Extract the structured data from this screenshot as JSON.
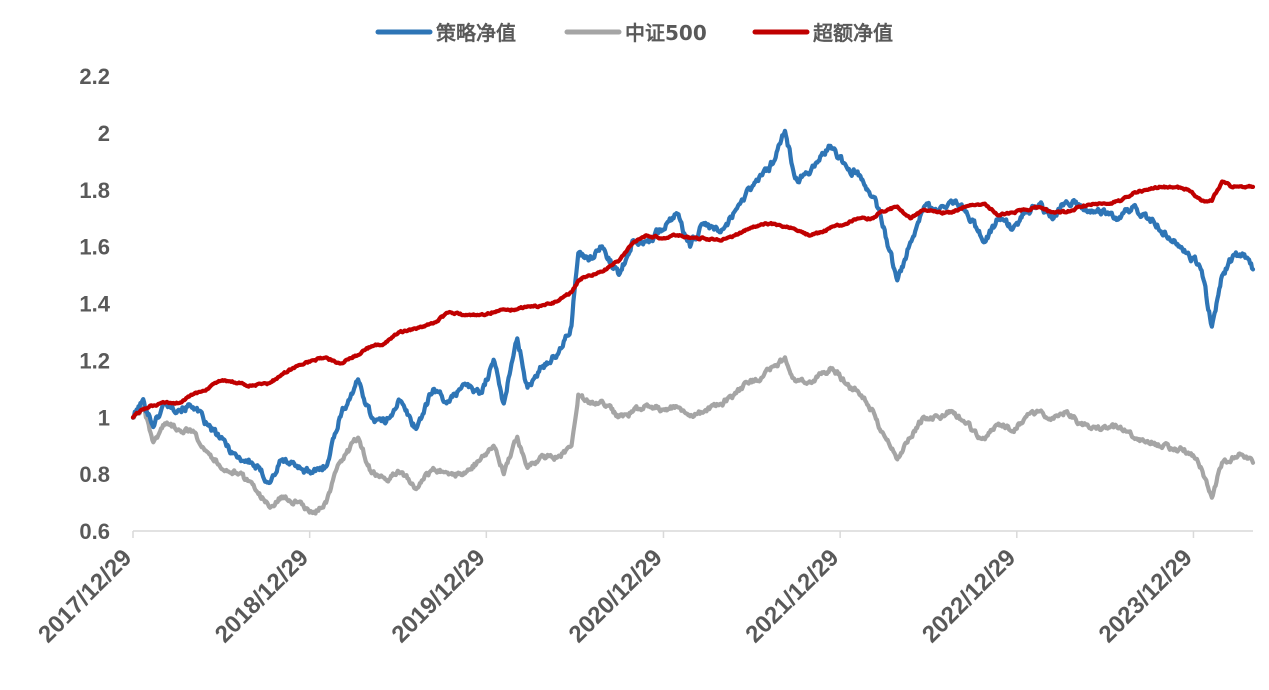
{
  "chart_data": {
    "type": "line",
    "title": "",
    "xlabel": "",
    "ylabel": "",
    "x_ticks": [
      "2017/12/29",
      "2018/12/29",
      "2019/12/29",
      "2020/12/29",
      "2021/12/29",
      "2022/12/29",
      "2023/12/29"
    ],
    "y_ticks": [
      "0.6",
      "0.8",
      "1",
      "1.2",
      "1.4",
      "1.6",
      "1.8",
      "2",
      "2.2"
    ],
    "ylim": [
      0.6,
      2.2
    ],
    "xlim": [
      "2017-12-29",
      "2024-04-30"
    ],
    "grid": false,
    "legend": "top-center",
    "series": [
      {
        "name": "策略净值",
        "color": "#2E75B6",
        "points": [
          [
            "2017-12-29",
            1.0
          ],
          [
            "2018-01-19",
            1.06
          ],
          [
            "2018-02-09",
            0.97
          ],
          [
            "2018-03-05",
            1.05
          ],
          [
            "2018-04-02",
            1.03
          ],
          [
            "2018-05-02",
            1.04
          ],
          [
            "2018-06-01",
            0.97
          ],
          [
            "2018-07-02",
            0.92
          ],
          [
            "2018-08-01",
            0.86
          ],
          [
            "2018-08-31",
            0.84
          ],
          [
            "2018-10-08",
            0.77
          ],
          [
            "2018-11-01",
            0.85
          ],
          [
            "2018-12-03",
            0.83
          ],
          [
            "2019-01-04",
            0.8
          ],
          [
            "2019-02-01",
            0.83
          ],
          [
            "2019-03-01",
            1.0
          ],
          [
            "2019-04-08",
            1.13
          ],
          [
            "2019-05-06",
            1.0
          ],
          [
            "2019-06-03",
            0.98
          ],
          [
            "2019-07-01",
            1.06
          ],
          [
            "2019-08-06",
            0.96
          ],
          [
            "2019-09-10",
            1.1
          ],
          [
            "2019-10-14",
            1.05
          ],
          [
            "2019-11-11",
            1.12
          ],
          [
            "2019-12-16",
            1.08
          ],
          [
            "2020-01-13",
            1.2
          ],
          [
            "2020-02-03",
            1.05
          ],
          [
            "2020-03-02",
            1.28
          ],
          [
            "2020-03-23",
            1.1
          ],
          [
            "2020-04-20",
            1.18
          ],
          [
            "2020-05-25",
            1.22
          ],
          [
            "2020-06-22",
            1.32
          ],
          [
            "2020-07-06",
            1.58
          ],
          [
            "2020-07-27",
            1.55
          ],
          [
            "2020-08-24",
            1.6
          ],
          [
            "2020-09-28",
            1.5
          ],
          [
            "2020-10-26",
            1.62
          ],
          [
            "2020-11-23",
            1.62
          ],
          [
            "2020-12-28",
            1.66
          ],
          [
            "2021-01-25",
            1.72
          ],
          [
            "2021-02-22",
            1.6
          ],
          [
            "2021-03-22",
            1.68
          ],
          [
            "2021-04-26",
            1.65
          ],
          [
            "2021-05-24",
            1.72
          ],
          [
            "2021-06-21",
            1.8
          ],
          [
            "2021-07-19",
            1.85
          ],
          [
            "2021-08-16",
            1.9
          ],
          [
            "2021-09-06",
            2.01
          ],
          [
            "2021-09-27",
            1.84
          ],
          [
            "2021-10-25",
            1.85
          ],
          [
            "2021-11-22",
            1.93
          ],
          [
            "2021-12-13",
            1.95
          ],
          [
            "2022-01-10",
            1.88
          ],
          [
            "2022-02-07",
            1.85
          ],
          [
            "2022-03-07",
            1.78
          ],
          [
            "2022-03-21",
            1.72
          ],
          [
            "2022-04-26",
            1.48
          ],
          [
            "2022-05-23",
            1.62
          ],
          [
            "2022-06-20",
            1.74
          ],
          [
            "2022-07-18",
            1.72
          ],
          [
            "2022-08-15",
            1.76
          ],
          [
            "2022-09-12",
            1.73
          ],
          [
            "2022-10-24",
            1.62
          ],
          [
            "2022-11-21",
            1.7
          ],
          [
            "2022-12-19",
            1.66
          ],
          [
            "2023-01-16",
            1.72
          ],
          [
            "2023-02-13",
            1.75
          ],
          [
            "2023-03-13",
            1.7
          ],
          [
            "2023-04-10",
            1.76
          ],
          [
            "2023-05-08",
            1.74
          ],
          [
            "2023-06-05",
            1.72
          ],
          [
            "2023-07-03",
            1.72
          ],
          [
            "2023-07-31",
            1.7
          ],
          [
            "2023-08-28",
            1.74
          ],
          [
            "2023-09-25",
            1.7
          ],
          [
            "2023-10-23",
            1.66
          ],
          [
            "2023-11-20",
            1.62
          ],
          [
            "2023-12-18",
            1.58
          ],
          [
            "2024-01-15",
            1.52
          ],
          [
            "2024-02-05",
            1.32
          ],
          [
            "2024-02-26",
            1.5
          ],
          [
            "2024-03-18",
            1.56
          ],
          [
            "2024-04-08",
            1.58
          ],
          [
            "2024-04-30",
            1.52
          ]
        ]
      },
      {
        "name": "中证500",
        "color": "#A5A5A5",
        "points": [
          [
            "2017-12-29",
            1.0
          ],
          [
            "2018-01-19",
            1.03
          ],
          [
            "2018-02-09",
            0.91
          ],
          [
            "2018-03-05",
            0.98
          ],
          [
            "2018-04-02",
            0.96
          ],
          [
            "2018-05-02",
            0.95
          ],
          [
            "2018-06-01",
            0.88
          ],
          [
            "2018-07-02",
            0.82
          ],
          [
            "2018-08-01",
            0.8
          ],
          [
            "2018-08-31",
            0.77
          ],
          [
            "2018-10-08",
            0.68
          ],
          [
            "2018-11-01",
            0.72
          ],
          [
            "2018-12-03",
            0.7
          ],
          [
            "2019-01-04",
            0.66
          ],
          [
            "2019-02-01",
            0.7
          ],
          [
            "2019-03-01",
            0.84
          ],
          [
            "2019-04-08",
            0.93
          ],
          [
            "2019-05-06",
            0.8
          ],
          [
            "2019-06-03",
            0.78
          ],
          [
            "2019-07-01",
            0.81
          ],
          [
            "2019-08-06",
            0.75
          ],
          [
            "2019-09-10",
            0.82
          ],
          [
            "2019-10-14",
            0.8
          ],
          [
            "2019-11-11",
            0.8
          ],
          [
            "2019-12-16",
            0.85
          ],
          [
            "2020-01-13",
            0.9
          ],
          [
            "2020-02-03",
            0.8
          ],
          [
            "2020-03-02",
            0.93
          ],
          [
            "2020-03-23",
            0.82
          ],
          [
            "2020-04-20",
            0.86
          ],
          [
            "2020-05-25",
            0.86
          ],
          [
            "2020-06-22",
            0.9
          ],
          [
            "2020-07-06",
            1.08
          ],
          [
            "2020-07-27",
            1.05
          ],
          [
            "2020-08-24",
            1.06
          ],
          [
            "2020-09-28",
            1.0
          ],
          [
            "2020-10-26",
            1.02
          ],
          [
            "2020-11-23",
            1.04
          ],
          [
            "2020-12-28",
            1.03
          ],
          [
            "2021-01-25",
            1.04
          ],
          [
            "2021-02-22",
            1.0
          ],
          [
            "2021-03-22",
            1.02
          ],
          [
            "2021-04-26",
            1.05
          ],
          [
            "2021-05-24",
            1.08
          ],
          [
            "2021-06-21",
            1.12
          ],
          [
            "2021-07-19",
            1.14
          ],
          [
            "2021-08-16",
            1.18
          ],
          [
            "2021-09-06",
            1.21
          ],
          [
            "2021-09-27",
            1.13
          ],
          [
            "2021-10-25",
            1.12
          ],
          [
            "2021-11-22",
            1.16
          ],
          [
            "2021-12-13",
            1.17
          ],
          [
            "2022-01-10",
            1.12
          ],
          [
            "2022-02-07",
            1.08
          ],
          [
            "2022-03-07",
            1.02
          ],
          [
            "2022-03-21",
            0.96
          ],
          [
            "2022-04-26",
            0.85
          ],
          [
            "2022-05-23",
            0.93
          ],
          [
            "2022-06-20",
            1.0
          ],
          [
            "2022-07-18",
            1.0
          ],
          [
            "2022-08-15",
            1.02
          ],
          [
            "2022-09-12",
            0.98
          ],
          [
            "2022-10-24",
            0.92
          ],
          [
            "2022-11-21",
            0.98
          ],
          [
            "2022-12-19",
            0.95
          ],
          [
            "2023-01-16",
            1.0
          ],
          [
            "2023-02-13",
            1.02
          ],
          [
            "2023-03-13",
            1.0
          ],
          [
            "2023-04-10",
            1.02
          ],
          [
            "2023-05-08",
            0.98
          ],
          [
            "2023-06-05",
            0.97
          ],
          [
            "2023-07-03",
            0.96
          ],
          [
            "2023-07-31",
            0.97
          ],
          [
            "2023-08-28",
            0.93
          ],
          [
            "2023-09-25",
            0.92
          ],
          [
            "2023-10-23",
            0.9
          ],
          [
            "2023-11-20",
            0.89
          ],
          [
            "2023-12-18",
            0.88
          ],
          [
            "2024-01-15",
            0.82
          ],
          [
            "2024-02-05",
            0.72
          ],
          [
            "2024-02-26",
            0.84
          ],
          [
            "2024-03-18",
            0.86
          ],
          [
            "2024-04-08",
            0.87
          ],
          [
            "2024-04-30",
            0.84
          ]
        ]
      },
      {
        "name": "超额净值",
        "color": "#C00000",
        "points": [
          [
            "2017-12-29",
            1.0
          ],
          [
            "2018-01-19",
            1.03
          ],
          [
            "2018-02-09",
            1.04
          ],
          [
            "2018-03-05",
            1.05
          ],
          [
            "2018-04-02",
            1.05
          ],
          [
            "2018-05-02",
            1.08
          ],
          [
            "2018-06-01",
            1.1
          ],
          [
            "2018-07-02",
            1.13
          ],
          [
            "2018-08-01",
            1.12
          ],
          [
            "2018-08-31",
            1.11
          ],
          [
            "2018-10-08",
            1.12
          ],
          [
            "2018-11-01",
            1.15
          ],
          [
            "2018-12-03",
            1.18
          ],
          [
            "2019-01-04",
            1.2
          ],
          [
            "2019-02-01",
            1.21
          ],
          [
            "2019-03-01",
            1.19
          ],
          [
            "2019-04-08",
            1.22
          ],
          [
            "2019-05-06",
            1.25
          ],
          [
            "2019-06-03",
            1.26
          ],
          [
            "2019-07-01",
            1.3
          ],
          [
            "2019-08-06",
            1.31
          ],
          [
            "2019-09-10",
            1.33
          ],
          [
            "2019-10-14",
            1.37
          ],
          [
            "2019-11-11",
            1.36
          ],
          [
            "2019-12-16",
            1.36
          ],
          [
            "2020-01-13",
            1.37
          ],
          [
            "2020-02-03",
            1.38
          ],
          [
            "2020-03-02",
            1.38
          ],
          [
            "2020-03-23",
            1.39
          ],
          [
            "2020-04-20",
            1.39
          ],
          [
            "2020-05-25",
            1.41
          ],
          [
            "2020-06-22",
            1.44
          ],
          [
            "2020-07-06",
            1.48
          ],
          [
            "2020-07-27",
            1.5
          ],
          [
            "2020-08-24",
            1.51
          ],
          [
            "2020-09-28",
            1.55
          ],
          [
            "2020-10-26",
            1.61
          ],
          [
            "2020-11-23",
            1.64
          ],
          [
            "2020-12-28",
            1.63
          ],
          [
            "2021-01-25",
            1.64
          ],
          [
            "2021-02-22",
            1.63
          ],
          [
            "2021-03-22",
            1.63
          ],
          [
            "2021-04-26",
            1.62
          ],
          [
            "2021-05-24",
            1.64
          ],
          [
            "2021-06-21",
            1.66
          ],
          [
            "2021-07-19",
            1.68
          ],
          [
            "2021-08-16",
            1.68
          ],
          [
            "2021-09-06",
            1.67
          ],
          [
            "2021-09-27",
            1.66
          ],
          [
            "2021-10-25",
            1.64
          ],
          [
            "2021-11-22",
            1.65
          ],
          [
            "2021-12-13",
            1.67
          ],
          [
            "2022-01-10",
            1.68
          ],
          [
            "2022-02-07",
            1.7
          ],
          [
            "2022-03-07",
            1.7
          ],
          [
            "2022-03-21",
            1.72
          ],
          [
            "2022-04-26",
            1.74
          ],
          [
            "2022-05-23",
            1.7
          ],
          [
            "2022-06-20",
            1.73
          ],
          [
            "2022-07-18",
            1.72
          ],
          [
            "2022-08-15",
            1.72
          ],
          [
            "2022-09-12",
            1.74
          ],
          [
            "2022-10-24",
            1.75
          ],
          [
            "2022-11-21",
            1.71
          ],
          [
            "2022-12-19",
            1.72
          ],
          [
            "2023-01-16",
            1.73
          ],
          [
            "2023-02-13",
            1.74
          ],
          [
            "2023-03-13",
            1.72
          ],
          [
            "2023-04-10",
            1.72
          ],
          [
            "2023-05-08",
            1.74
          ],
          [
            "2023-06-05",
            1.75
          ],
          [
            "2023-07-03",
            1.75
          ],
          [
            "2023-07-31",
            1.76
          ],
          [
            "2023-08-28",
            1.79
          ],
          [
            "2023-09-25",
            1.8
          ],
          [
            "2023-10-23",
            1.81
          ],
          [
            "2023-11-20",
            1.81
          ],
          [
            "2023-12-18",
            1.8
          ],
          [
            "2024-01-15",
            1.76
          ],
          [
            "2024-02-05",
            1.76
          ],
          [
            "2024-02-26",
            1.83
          ],
          [
            "2024-03-18",
            1.81
          ],
          [
            "2024-04-08",
            1.81
          ],
          [
            "2024-04-30",
            1.81
          ]
        ]
      }
    ]
  }
}
